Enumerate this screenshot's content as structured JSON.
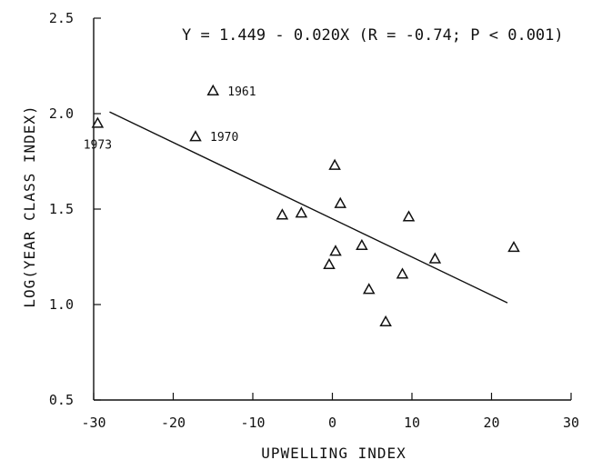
{
  "chart_data": {
    "type": "scatter",
    "title": "",
    "equation": "Y = 1.449 - 0.020X (R = -0.74; P < 0.001)",
    "xlabel": "UPWELLING INDEX",
    "ylabel": "LOG(YEAR CLASS INDEX)",
    "xlim": [
      -30,
      30
    ],
    "ylim": [
      0.5,
      2.5
    ],
    "xticks": [
      -30,
      -20,
      -10,
      0,
      10,
      20,
      30
    ],
    "yticks": [
      0.5,
      1.0,
      1.5,
      2.0,
      2.5
    ],
    "xtick_labels": [
      "-30",
      "-20",
      "-10",
      "0",
      "10",
      "20",
      "30"
    ],
    "ytick_labels": [
      "0.5",
      "1.0",
      "1.5",
      "2.0",
      "2.5"
    ],
    "grid": false,
    "marker": "open-triangle",
    "points": [
      {
        "x": -29.5,
        "y": 1.95,
        "label": "1973"
      },
      {
        "x": -15.0,
        "y": 2.12,
        "label": "1961"
      },
      {
        "x": -17.2,
        "y": 1.88,
        "label": "1970"
      },
      {
        "x": -6.3,
        "y": 1.47
      },
      {
        "x": -3.9,
        "y": 1.48
      },
      {
        "x": -0.4,
        "y": 1.21
      },
      {
        "x": 0.3,
        "y": 1.73
      },
      {
        "x": 0.4,
        "y": 1.28
      },
      {
        "x": 1.0,
        "y": 1.53
      },
      {
        "x": 3.7,
        "y": 1.31
      },
      {
        "x": 4.6,
        "y": 1.08
      },
      {
        "x": 6.7,
        "y": 0.91
      },
      {
        "x": 8.8,
        "y": 1.16
      },
      {
        "x": 9.6,
        "y": 1.46
      },
      {
        "x": 12.9,
        "y": 1.24
      },
      {
        "x": 22.8,
        "y": 1.3
      }
    ],
    "regression": {
      "intercept": 1.449,
      "slope": -0.02,
      "x_range": [
        -28,
        22
      ]
    }
  }
}
